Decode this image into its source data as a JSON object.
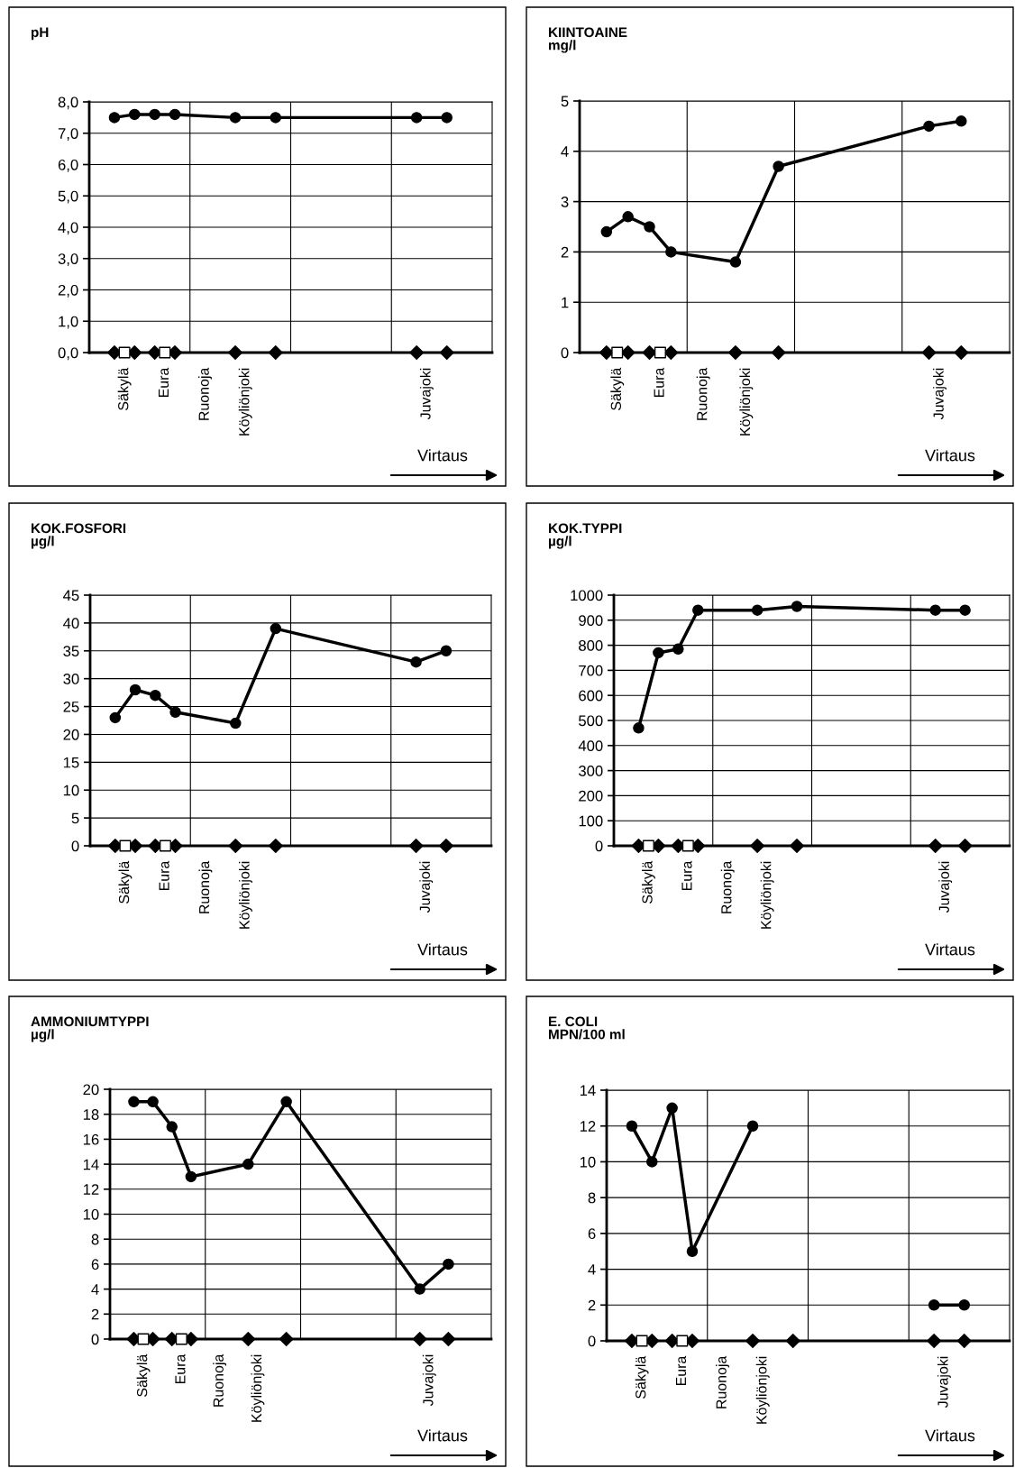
{
  "chart_data": [
    {
      "type": "line",
      "title": "pH",
      "ylim": [
        0,
        8
      ],
      "yticks": [
        {
          "value": 0,
          "label": "0,0"
        },
        {
          "value": 1,
          "label": "1,0"
        },
        {
          "value": 2,
          "label": "2,0"
        },
        {
          "value": 3,
          "label": "3,0"
        },
        {
          "value": 4,
          "label": "4,0"
        },
        {
          "value": 5,
          "label": "5,0"
        },
        {
          "value": 6,
          "label": "6,0"
        },
        {
          "value": 7,
          "label": "7,0"
        },
        {
          "value": 8,
          "label": "8,0"
        }
      ],
      "categories": [
        null,
        null,
        null,
        "Säkylä",
        null,
        null,
        null,
        "Eura",
        null,
        null,
        null,
        "Ruonoja",
        null,
        null,
        null,
        "Köyliönjoki",
        null,
        null,
        null,
        null,
        null,
        null,
        null,
        null,
        null,
        null,
        null,
        null,
        null,
        null,
        null,
        null,
        null,
        "Juvajoki",
        null,
        null,
        null,
        null,
        null,
        null
      ],
      "grid": true,
      "annotations": [
        "Virtaus"
      ],
      "series": [
        {
          "color": "#000000",
          "marker": "circle",
          "values": [
            null,
            null,
            7.5,
            null,
            7.6,
            null,
            7.6,
            null,
            7.6,
            null,
            null,
            null,
            null,
            null,
            7.5,
            null,
            null,
            null,
            7.5,
            null,
            null,
            null,
            null,
            null,
            null,
            null,
            null,
            null,
            null,
            null,
            null,
            null,
            7.5,
            null,
            null,
            7.5,
            null,
            null,
            null,
            null
          ]
        },
        {
          "type": "scatter",
          "color": "#000000",
          "marker": "diamond",
          "values": [
            null,
            null,
            0,
            null,
            0,
            null,
            0,
            null,
            0,
            null,
            null,
            null,
            null,
            null,
            0,
            null,
            null,
            null,
            0,
            null,
            null,
            null,
            null,
            null,
            null,
            null,
            null,
            null,
            null,
            null,
            null,
            null,
            0,
            null,
            null,
            0,
            null,
            null,
            null,
            null
          ]
        },
        {
          "type": "scatter",
          "color": "#ffffff",
          "marker": "square",
          "values": [
            null,
            null,
            null,
            0,
            null,
            null,
            null,
            0,
            null,
            null,
            null,
            null,
            null,
            null,
            null,
            null,
            null,
            null,
            null,
            null,
            null,
            null,
            null,
            null,
            null,
            null,
            null,
            null,
            null,
            null,
            null,
            null,
            null,
            null,
            null,
            null,
            null,
            null,
            null,
            null
          ]
        }
      ]
    },
    {
      "type": "line",
      "title": "KIINTOAINE\nmg/l",
      "ylim": [
        0,
        5
      ],
      "yticks": [
        0,
        1,
        2,
        3,
        4,
        5
      ],
      "categories": [
        null,
        null,
        null,
        "Säkylä",
        null,
        null,
        null,
        "Eura",
        null,
        null,
        null,
        "Ruonoja",
        null,
        null,
        null,
        "Köyliönjoki",
        null,
        null,
        null,
        null,
        null,
        null,
        null,
        null,
        null,
        null,
        null,
        null,
        null,
        null,
        null,
        null,
        null,
        "Juvajoki",
        null,
        null,
        null,
        null,
        null,
        null
      ],
      "grid": true,
      "annotations": [
        "Virtaus"
      ],
      "series": [
        {
          "color": "#000000",
          "marker": "circle",
          "values": [
            null,
            null,
            2.4,
            null,
            2.7,
            null,
            2.5,
            null,
            2.0,
            null,
            null,
            null,
            null,
            null,
            1.8,
            null,
            null,
            null,
            3.7,
            null,
            null,
            null,
            null,
            null,
            null,
            null,
            null,
            null,
            null,
            null,
            null,
            null,
            4.5,
            null,
            null,
            4.6,
            null,
            null,
            null,
            null
          ]
        },
        {
          "type": "scatter",
          "color": "#000000",
          "marker": "diamond",
          "values": [
            null,
            null,
            0,
            null,
            0,
            null,
            0,
            null,
            0,
            null,
            null,
            null,
            null,
            null,
            0,
            null,
            null,
            null,
            0,
            null,
            null,
            null,
            null,
            null,
            null,
            null,
            null,
            null,
            null,
            null,
            null,
            null,
            0,
            null,
            null,
            0,
            null,
            null,
            null,
            null
          ]
        },
        {
          "type": "scatter",
          "color": "#ffffff",
          "marker": "square",
          "values": [
            null,
            null,
            null,
            0,
            null,
            null,
            null,
            0,
            null,
            null,
            null,
            null,
            null,
            null,
            null,
            null,
            null,
            null,
            null,
            null,
            null,
            null,
            null,
            null,
            null,
            null,
            null,
            null,
            null,
            null,
            null,
            null,
            null,
            null,
            null,
            null,
            null,
            null,
            null,
            null
          ]
        }
      ]
    },
    {
      "type": "line",
      "title": "KOK.FOSFORI\nµg/l",
      "ylim": [
        0,
        45
      ],
      "yticks": [
        0,
        5,
        10,
        15,
        20,
        25,
        30,
        35,
        40,
        45
      ],
      "categories": [
        null,
        null,
        null,
        "Säkylä",
        null,
        null,
        null,
        "Eura",
        null,
        null,
        null,
        "Ruonoja",
        null,
        null,
        null,
        "Köyliönjoki",
        null,
        null,
        null,
        null,
        null,
        null,
        null,
        null,
        null,
        null,
        null,
        null,
        null,
        null,
        null,
        null,
        null,
        "Juvajoki",
        null,
        null,
        null,
        null,
        null,
        null
      ],
      "grid": true,
      "annotations": [
        "Virtaus"
      ],
      "series": [
        {
          "color": "#000000",
          "marker": "circle",
          "values": [
            null,
            null,
            23,
            null,
            28,
            null,
            27,
            null,
            24,
            null,
            null,
            null,
            null,
            null,
            22,
            null,
            null,
            null,
            39,
            null,
            null,
            null,
            null,
            null,
            null,
            null,
            null,
            null,
            null,
            null,
            null,
            null,
            33,
            null,
            null,
            35,
            null,
            null,
            null,
            null
          ]
        },
        {
          "type": "scatter",
          "color": "#000000",
          "marker": "diamond",
          "values": [
            null,
            null,
            0,
            null,
            0,
            null,
            0,
            null,
            0,
            null,
            null,
            null,
            null,
            null,
            0,
            null,
            null,
            null,
            0,
            null,
            null,
            null,
            null,
            null,
            null,
            null,
            null,
            null,
            null,
            null,
            null,
            null,
            0,
            null,
            null,
            0,
            null,
            null,
            null,
            null
          ]
        },
        {
          "type": "scatter",
          "color": "#ffffff",
          "marker": "square",
          "values": [
            null,
            null,
            null,
            0,
            null,
            null,
            null,
            0,
            null,
            null,
            null,
            null,
            null,
            null,
            null,
            null,
            null,
            null,
            null,
            null,
            null,
            null,
            null,
            null,
            null,
            null,
            null,
            null,
            null,
            null,
            null,
            null,
            null,
            null,
            null,
            null,
            null,
            null,
            null,
            null
          ]
        }
      ]
    },
    {
      "type": "line",
      "title": "KOK.TYPPI\nµg/l",
      "ylim": [
        0,
        1000
      ],
      "yticks": [
        0,
        100,
        200,
        300,
        400,
        500,
        600,
        700,
        800,
        900,
        1000
      ],
      "categories": [
        null,
        null,
        null,
        "Säkylä",
        null,
        null,
        null,
        "Eura",
        null,
        null,
        null,
        "Ruonoja",
        null,
        null,
        null,
        "Köyliönjoki",
        null,
        null,
        null,
        null,
        null,
        null,
        null,
        null,
        null,
        null,
        null,
        null,
        null,
        null,
        null,
        null,
        null,
        "Juvajoki",
        null,
        null,
        null,
        null,
        null,
        null
      ],
      "grid": true,
      "annotations": [
        "Virtaus"
      ],
      "series": [
        {
          "color": "#000000",
          "marker": "circle",
          "values": [
            null,
            null,
            470,
            null,
            770,
            null,
            785,
            null,
            940,
            null,
            null,
            null,
            null,
            null,
            940,
            null,
            null,
            null,
            955,
            null,
            null,
            null,
            null,
            null,
            null,
            null,
            null,
            null,
            null,
            null,
            null,
            null,
            940,
            null,
            null,
            940,
            null,
            null,
            null,
            null
          ]
        },
        {
          "type": "scatter",
          "color": "#000000",
          "marker": "diamond",
          "values": [
            null,
            null,
            0,
            null,
            0,
            null,
            0,
            null,
            0,
            null,
            null,
            null,
            null,
            null,
            0,
            null,
            null,
            null,
            0,
            null,
            null,
            null,
            null,
            null,
            null,
            null,
            null,
            null,
            null,
            null,
            null,
            null,
            0,
            null,
            null,
            0,
            null,
            null,
            null,
            null
          ]
        },
        {
          "type": "scatter",
          "color": "#ffffff",
          "marker": "square",
          "values": [
            null,
            null,
            null,
            0,
            null,
            null,
            null,
            0,
            null,
            null,
            null,
            null,
            null,
            null,
            null,
            null,
            null,
            null,
            null,
            null,
            null,
            null,
            null,
            null,
            null,
            null,
            null,
            null,
            null,
            null,
            null,
            null,
            null,
            null,
            null,
            null,
            null,
            null,
            null,
            null
          ]
        }
      ]
    },
    {
      "type": "line",
      "title": "AMMONIUMTYPPI\nµg/l",
      "ylim": [
        0,
        20
      ],
      "yticks": [
        0,
        2,
        4,
        6,
        8,
        10,
        12,
        14,
        16,
        18,
        20
      ],
      "categories": [
        null,
        null,
        null,
        "Säkylä",
        null,
        null,
        null,
        "Eura",
        null,
        null,
        null,
        "Ruonoja",
        null,
        null,
        null,
        "Köyliönjoki",
        null,
        null,
        null,
        null,
        null,
        null,
        null,
        null,
        null,
        null,
        null,
        null,
        null,
        null,
        null,
        null,
        null,
        "Juvajoki",
        null,
        null,
        null,
        null,
        null,
        null
      ],
      "grid": true,
      "annotations": [
        "Virtaus"
      ],
      "series": [
        {
          "color": "#000000",
          "marker": "circle",
          "values": [
            null,
            null,
            19,
            null,
            19,
            null,
            17,
            null,
            13,
            null,
            null,
            null,
            null,
            null,
            14,
            null,
            null,
            null,
            19,
            null,
            null,
            null,
            null,
            null,
            null,
            null,
            null,
            null,
            null,
            null,
            null,
            null,
            4,
            null,
            null,
            6,
            null,
            null,
            null,
            null
          ]
        },
        {
          "type": "scatter",
          "color": "#000000",
          "marker": "diamond",
          "values": [
            null,
            null,
            0,
            null,
            0,
            null,
            0,
            null,
            0,
            null,
            null,
            null,
            null,
            null,
            0,
            null,
            null,
            null,
            0,
            null,
            null,
            null,
            null,
            null,
            null,
            null,
            null,
            null,
            null,
            null,
            null,
            null,
            0,
            null,
            null,
            0,
            null,
            null,
            null,
            null
          ]
        },
        {
          "type": "scatter",
          "color": "#ffffff",
          "marker": "square",
          "values": [
            null,
            null,
            null,
            0,
            null,
            null,
            null,
            0,
            null,
            null,
            null,
            null,
            null,
            null,
            null,
            null,
            null,
            null,
            null,
            null,
            null,
            null,
            null,
            null,
            null,
            null,
            null,
            null,
            null,
            null,
            null,
            null,
            null,
            null,
            null,
            null,
            null,
            null,
            null,
            null
          ]
        }
      ]
    },
    {
      "type": "line",
      "title": "E. COLI\nMPN/100 ml",
      "ylim": [
        0,
        14
      ],
      "yticks": [
        0,
        2,
        4,
        6,
        8,
        10,
        12,
        14
      ],
      "categories": [
        null,
        null,
        null,
        "Säkylä",
        null,
        null,
        null,
        "Eura",
        null,
        null,
        null,
        "Ruonoja",
        null,
        null,
        null,
        "Köyliönjoki",
        null,
        null,
        null,
        null,
        null,
        null,
        null,
        null,
        null,
        null,
        null,
        null,
        null,
        null,
        null,
        null,
        null,
        "Juvajoki",
        null,
        null,
        null,
        null,
        null,
        null
      ],
      "grid": true,
      "annotations": [
        "Virtaus"
      ],
      "series": [
        {
          "color": "#000000",
          "marker": "circle",
          "values": [
            null,
            null,
            12,
            null,
            10,
            null,
            13,
            null,
            5,
            null,
            null,
            null,
            null,
            null,
            12,
            null,
            null,
            null,
            null,
            null,
            null,
            null,
            null,
            null,
            null,
            null,
            null,
            null,
            null,
            null,
            null,
            null,
            null,
            null,
            null,
            null,
            null,
            null,
            null,
            null
          ]
        },
        {
          "color": "#000000",
          "marker": "circle",
          "values": [
            null,
            null,
            null,
            null,
            null,
            null,
            null,
            null,
            null,
            null,
            null,
            null,
            null,
            null,
            null,
            null,
            null,
            null,
            null,
            null,
            null,
            null,
            null,
            null,
            null,
            null,
            null,
            null,
            null,
            null,
            null,
            null,
            2,
            null,
            null,
            2,
            null,
            null,
            null,
            null
          ]
        },
        {
          "type": "scatter",
          "color": "#000000",
          "marker": "diamond",
          "values": [
            null,
            null,
            0,
            null,
            0,
            null,
            0,
            null,
            0,
            null,
            null,
            null,
            null,
            null,
            0,
            null,
            null,
            null,
            0,
            null,
            null,
            null,
            null,
            null,
            null,
            null,
            null,
            null,
            null,
            null,
            null,
            null,
            0,
            null,
            null,
            0,
            null,
            null,
            null,
            null
          ]
        },
        {
          "type": "scatter",
          "color": "#ffffff",
          "marker": "square",
          "values": [
            null,
            null,
            null,
            0,
            null,
            null,
            null,
            0,
            null,
            null,
            null,
            null,
            null,
            null,
            null,
            null,
            null,
            null,
            null,
            null,
            null,
            null,
            null,
            null,
            null,
            null,
            null,
            null,
            null,
            null,
            null,
            null,
            null,
            null,
            null,
            null,
            null,
            null,
            null,
            null
          ]
        }
      ]
    }
  ]
}
